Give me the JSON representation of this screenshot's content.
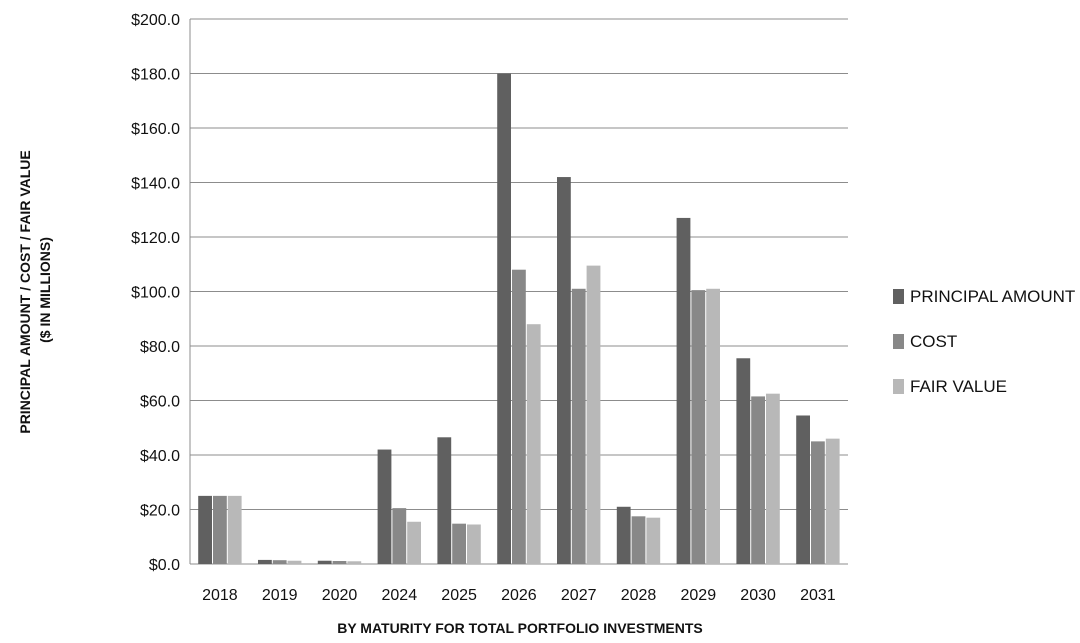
{
  "chart_data": {
    "type": "bar",
    "categories": [
      "2018",
      "2019",
      "2020",
      "2024",
      "2025",
      "2026",
      "2027",
      "2028",
      "2029",
      "2030",
      "2031"
    ],
    "series": [
      {
        "name": "PRINCIPAL AMOUNT",
        "color": "#606060",
        "values": [
          25.0,
          1.5,
          1.2,
          42.0,
          46.5,
          180.0,
          142.0,
          21.0,
          127.0,
          75.5,
          54.5
        ]
      },
      {
        "name": "COST",
        "color": "#888888",
        "values": [
          25.0,
          1.4,
          1.1,
          20.5,
          14.8,
          108.0,
          101.0,
          17.5,
          100.5,
          61.5,
          45.0
        ]
      },
      {
        "name": "FAIR VALUE",
        "color": "#b8b8b8",
        "values": [
          25.0,
          1.2,
          1.0,
          15.5,
          14.5,
          88.0,
          109.5,
          17.0,
          101.0,
          62.5,
          46.0
        ]
      }
    ],
    "y_ticks": [
      "$0.0",
      "$20.0",
      "$40.0",
      "$60.0",
      "$80.0",
      "$100.0",
      "$120.0",
      "$140.0",
      "$160.0",
      "$180.0",
      "$200.0"
    ],
    "ylim": [
      0,
      200
    ],
    "y_step": 20,
    "ylabel_line1": "PRINCIPAL AMOUNT / COST / FAIR VALUE",
    "ylabel_line2": "($ IN MILLIONS)",
    "xlabel": "BY MATURITY FOR TOTAL PORTFOLIO INVESTMENTS",
    "grid": true,
    "legend_position": "right"
  }
}
